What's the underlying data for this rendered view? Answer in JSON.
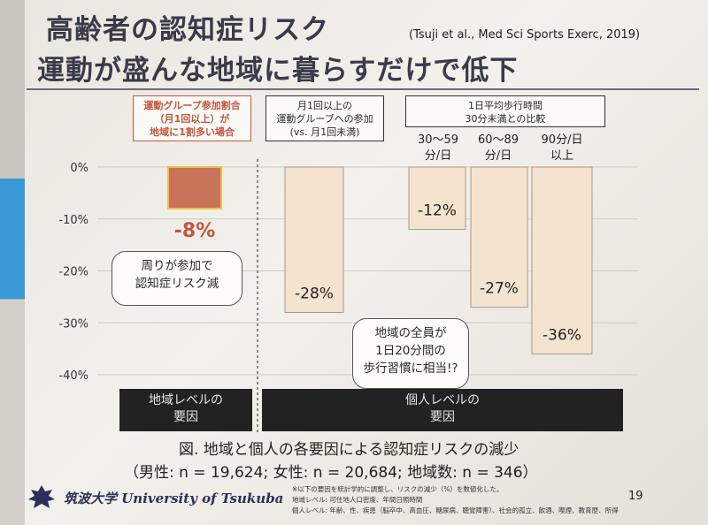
{
  "title": {
    "line1": "高齢者の認知症リスク",
    "line2": "運動が盛んな地域に暮らすだけで低下",
    "citation": "(Tsuji et al., Med Sci Sports Exerc, 2019)"
  },
  "headers": {
    "regional": "運動グループ参加割合\n（月1回以上）が\n地域に1割多い場合",
    "group": "月1回以上の\n運動グループへの参加\n(vs. 月1回未満)",
    "walking": "1日平均歩行時間\n30分未満との比較",
    "walk_cat1": "30〜59\n分/日",
    "walk_cat2": "60〜89\n分/日",
    "walk_cat3": "90分/日\n以上"
  },
  "callouts": {
    "regional": "周りが参加で\n認知症リスク減",
    "walking": "地域の全員が\n1日20分間の\n歩行習慣に相当!?"
  },
  "levels": {
    "regional": "地域レベルの\n要因",
    "individual": "個人レベルの\n要因"
  },
  "caption": {
    "line1": "図. 地域と個人の各要因による認知症リスクの減少",
    "line2": "（男性: n = 19,624; 女性: n = 20,684; 地域数: n = 346）"
  },
  "notes": {
    "line1": "※以下の要因を統計学的に調整し、リスクの減少（%）を数値化した。",
    "line2": "地域レベル: 可住地人口密度、年間日照時間",
    "line3": "個人レベル: 年齢、性、疾患（脳卒中、高血圧、糖尿病、聴覚障害）、社会的孤立、飲酒、喫煙、教育歴、所得"
  },
  "footer": {
    "university": "筑波大学 University of Tsukuba",
    "page": "19"
  },
  "colors": {
    "regional_bar": "#c9735a",
    "regional_bar_border": "#e8c24a",
    "individual_bar": "#f3e3cf",
    "individual_bar_border": "#a89a88",
    "regional_label": "#c0573f",
    "axis_text": "#333333"
  },
  "chart_data": {
    "type": "bar",
    "ylim": [
      -40,
      0
    ],
    "yticks": [
      "0%",
      "-10%",
      "-20%",
      "-30%",
      "-40%"
    ],
    "ytick_values": [
      0,
      -10,
      -20,
      -30,
      -40
    ],
    "grid": true,
    "bars": [
      {
        "group": "regional",
        "value": -8,
        "label": "-8%"
      },
      {
        "group": "group_participation",
        "value": -28,
        "label": "-28%"
      },
      {
        "group": "walking_30_59",
        "value": -12,
        "label": "-12%"
      },
      {
        "group": "walking_60_89",
        "value": -27,
        "label": "-27%"
      },
      {
        "group": "walking_90_plus",
        "value": -36,
        "label": "-36%"
      }
    ]
  }
}
